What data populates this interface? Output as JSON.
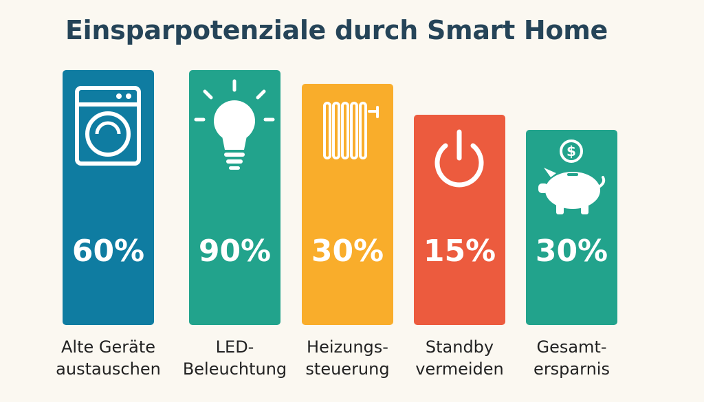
{
  "chart_data": {
    "type": "bar",
    "title": "Einsparpotenziale durch Smart Home",
    "categories": [
      [
        "Alte Geräte",
        "austauschen"
      ],
      [
        "LED-",
        "Beleuchtung"
      ],
      [
        "Heizungs-",
        "steuerung"
      ],
      [
        "Standby",
        "vermeiden"
      ],
      [
        "Gesamt-",
        "ersparnis"
      ]
    ],
    "values": [
      60,
      90,
      30,
      15,
      30
    ],
    "value_labels": [
      "60%",
      "90%",
      "30%",
      "15%",
      "30%"
    ],
    "unit": "%",
    "bar_colors": [
      "#0f7ca1",
      "#22a38c",
      "#f9ad2b",
      "#ec5b3e",
      "#22a38c"
    ],
    "icons": [
      "washing-machine-icon",
      "light-bulb-icon",
      "radiator-icon",
      "power-icon",
      "piggy-bank-icon"
    ],
    "grid": false,
    "legend": "none"
  }
}
